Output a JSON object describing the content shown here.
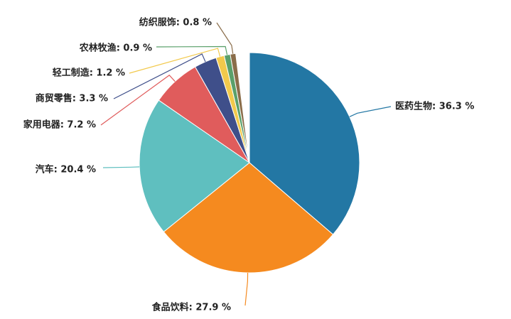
{
  "chart_data": {
    "type": "pie",
    "value_labels": [
      "医药生物: 36.3 %",
      "食品饮料: 27.9 %",
      "汽车: 20.4 %",
      "家用电器: 7.2 %",
      "商贸零售: 3.3 %",
      "轻工制造: 1.2 %",
      "农林牧渔: 0.9 %",
      "纺织服饰: 0.8 %"
    ],
    "values": [
      36.3,
      27.9,
      20.4,
      7.2,
      3.3,
      1.2,
      0.9,
      0.8
    ],
    "colors": [
      "#2377a4",
      "#f58a1f",
      "#5fbfbf",
      "#e05c5c",
      "#3f4f8a",
      "#f2c94c",
      "#5aa06a",
      "#8a6d4a"
    ]
  }
}
